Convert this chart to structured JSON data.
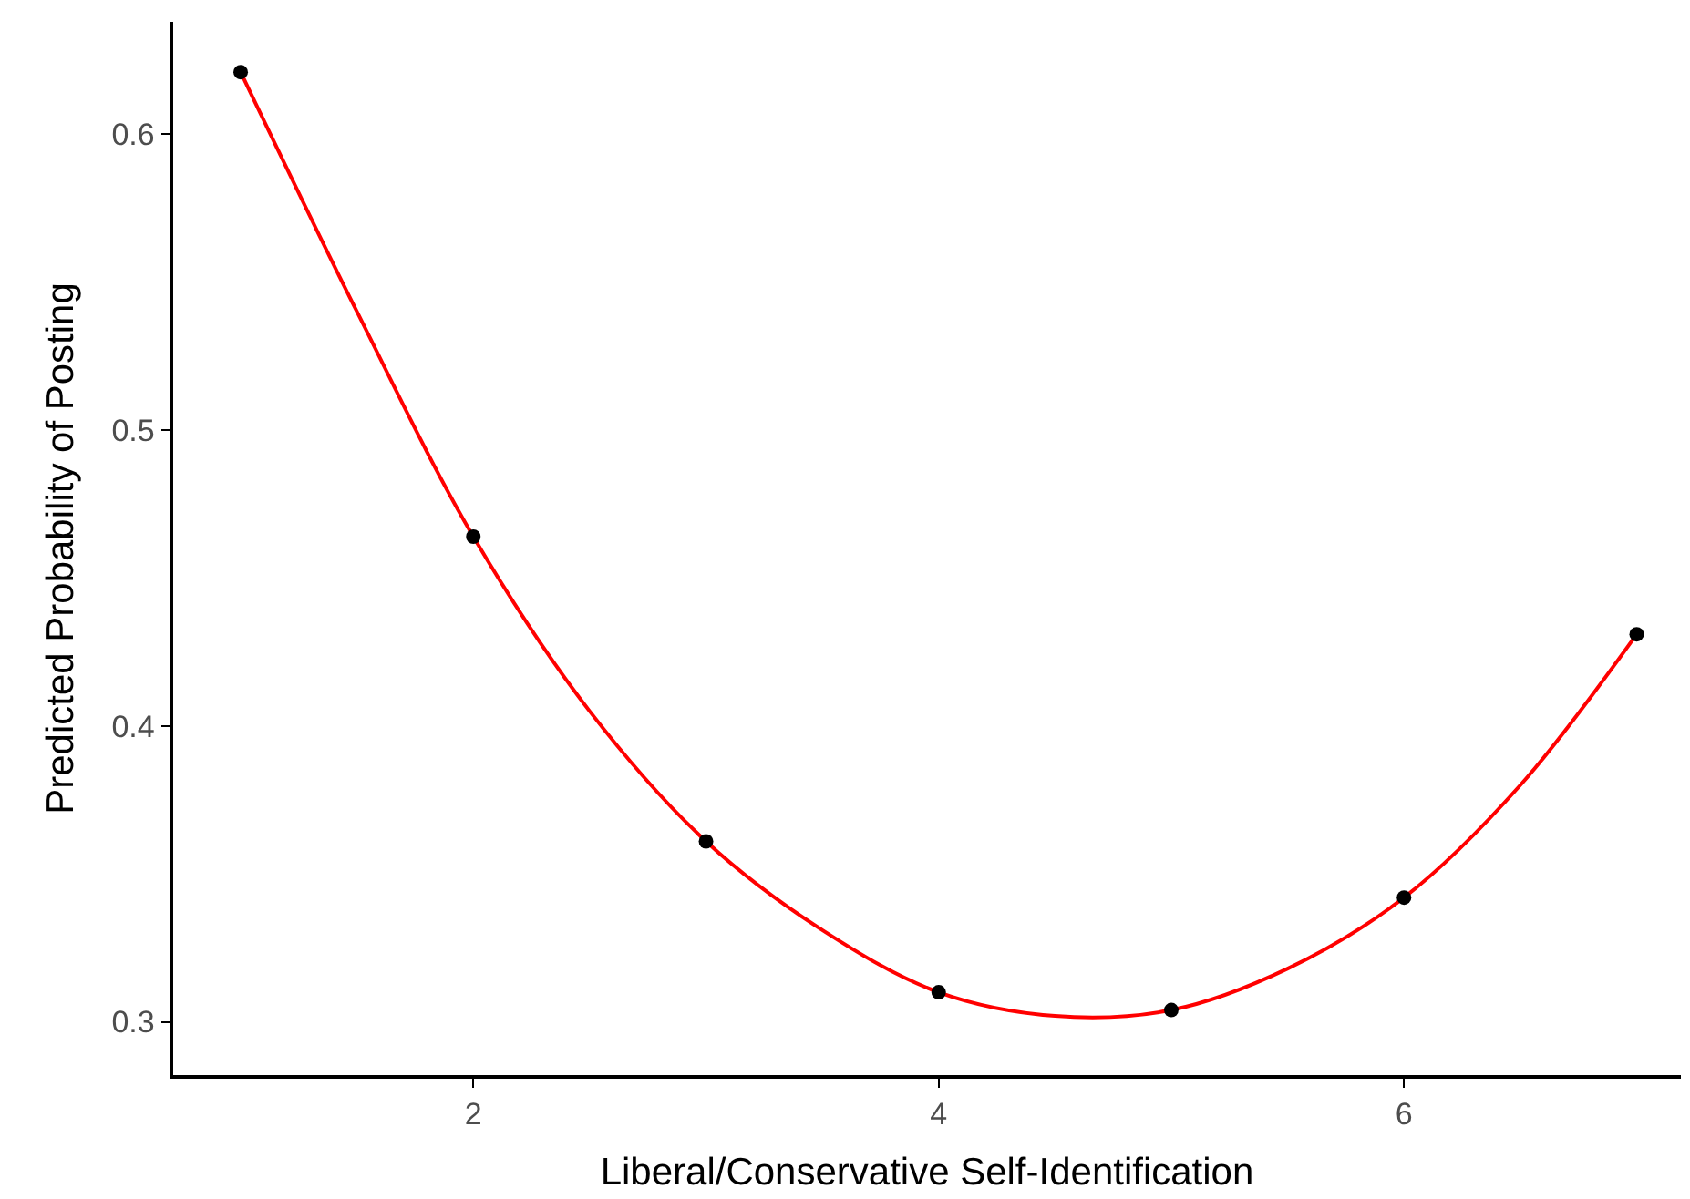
{
  "chart_data": {
    "type": "scatter",
    "xlabel": "Liberal/Conservative Self-Identification",
    "ylabel": "Predicted Probability of Posting",
    "x": [
      1,
      2,
      3,
      4,
      5,
      6,
      7
    ],
    "series": [
      {
        "color": "#000000",
        "marker": "circle",
        "values": [
          0.621,
          0.464,
          0.361,
          0.31,
          0.304,
          0.342,
          0.431
        ]
      },
      {
        "type": "line",
        "color": "#ff0000",
        "marker": "none",
        "line_style": "solid",
        "x": [
          1,
          1.5,
          2,
          2.5,
          3,
          3.5,
          4,
          4.5,
          5,
          5.5,
          6,
          6.5,
          7
        ],
        "values": [
          0.621,
          0.54,
          0.464,
          0.405,
          0.361,
          0.331,
          0.31,
          0.302,
          0.304,
          0.318,
          0.342,
          0.38,
          0.431
        ]
      }
    ],
    "xlim": [
      0.71,
      7.19
    ],
    "ylim": [
      0.282,
      0.638
    ],
    "xticks": [
      2,
      4,
      6
    ],
    "yticks": [
      0.3,
      0.4,
      0.5,
      0.6
    ]
  }
}
